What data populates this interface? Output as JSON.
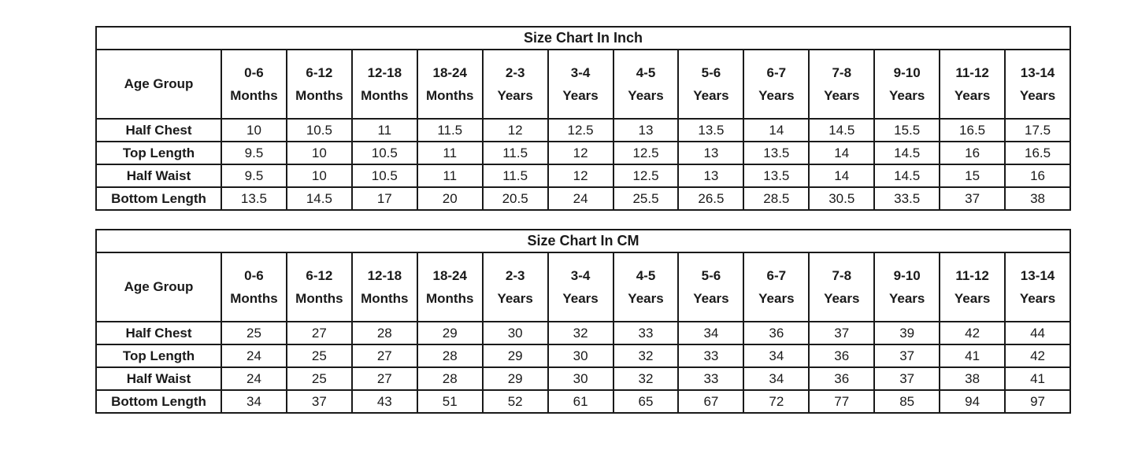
{
  "page": {
    "background_color": "#ffffff",
    "text_color": "#1a1a1a",
    "border_color": "#1a1a1a"
  },
  "chart_data": [
    {
      "type": "table",
      "title": "Size Chart In Inch",
      "corner_label": "Age Group",
      "age_columns": [
        "0-6\nMonths",
        "6-12\nMonths",
        "12-18\nMonths",
        "18-24\nMonths",
        "2-3\nYears",
        "3-4\nYears",
        "4-5\nYears",
        "5-6\nYears",
        "6-7\nYears",
        "7-8\nYears",
        "9-10\nYears",
        "11-12\nYears",
        "13-14\nYears"
      ],
      "rows": [
        {
          "label": "Half Chest",
          "values": [
            10,
            10.5,
            11,
            11.5,
            12,
            12.5,
            13,
            13.5,
            14,
            14.5,
            15.5,
            16.5,
            17.5
          ]
        },
        {
          "label": "Top Length",
          "values": [
            9.5,
            10,
            10.5,
            11,
            11.5,
            12,
            12.5,
            13,
            13.5,
            14,
            14.5,
            16,
            16.5
          ]
        },
        {
          "label": "Half Waist",
          "values": [
            9.5,
            10,
            10.5,
            11,
            11.5,
            12,
            12.5,
            13,
            13.5,
            14,
            14.5,
            15,
            16
          ]
        },
        {
          "label": "Bottom Length",
          "values": [
            13.5,
            14.5,
            17,
            20,
            20.5,
            24,
            25.5,
            26.5,
            28.5,
            30.5,
            33.5,
            37,
            38
          ]
        }
      ]
    },
    {
      "type": "table",
      "title": "Size Chart In CM",
      "corner_label": "Age Group",
      "age_columns": [
        "0-6\nMonths",
        "6-12\nMonths",
        "12-18\nMonths",
        "18-24\nMonths",
        "2-3\nYears",
        "3-4\nYears",
        "4-5\nYears",
        "5-6\nYears",
        "6-7\nYears",
        "7-8\nYears",
        "9-10\nYears",
        "11-12\nYears",
        "13-14\nYears"
      ],
      "rows": [
        {
          "label": "Half Chest",
          "values": [
            25,
            27,
            28,
            29,
            30,
            32,
            33,
            34,
            36,
            37,
            39,
            42,
            44
          ]
        },
        {
          "label": "Top Length",
          "values": [
            24,
            25,
            27,
            28,
            29,
            30,
            32,
            33,
            34,
            36,
            37,
            41,
            42
          ]
        },
        {
          "label": "Half Waist",
          "values": [
            24,
            25,
            27,
            28,
            29,
            30,
            32,
            33,
            34,
            36,
            37,
            38,
            41
          ]
        },
        {
          "label": "Bottom Length",
          "values": [
            34,
            37,
            43,
            51,
            52,
            61,
            65,
            67,
            72,
            77,
            85,
            94,
            97
          ]
        }
      ]
    }
  ]
}
